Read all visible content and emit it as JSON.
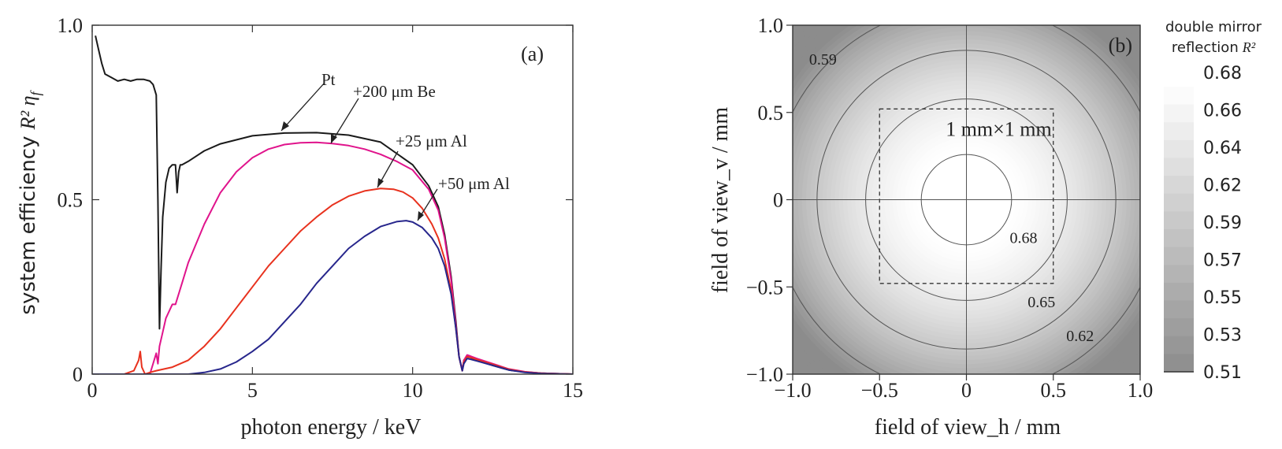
{
  "chart_data": [
    {
      "type": "line",
      "panel_label": "(a)",
      "xlabel": "photon energy / keV",
      "ylabel": "system efficiency",
      "ylabel_symbol": "R² η",
      "ylabel_subscript": "f",
      "xlim": [
        0,
        15
      ],
      "ylim": [
        0,
        1
      ],
      "xticks": [
        0,
        5,
        10,
        15
      ],
      "xtick_labels": [
        "0",
        "5",
        "10",
        "15"
      ],
      "yticks": [
        0,
        0.5,
        1.0
      ],
      "ytick_labels": [
        "0",
        "0.5",
        "1.0"
      ],
      "grid": false,
      "series": [
        {
          "name": "Pt",
          "color": "#1a1a1a",
          "x": [
            0.1,
            0.2,
            0.3,
            0.4,
            0.6,
            0.8,
            1.0,
            1.2,
            1.4,
            1.6,
            1.8,
            1.9,
            2.0,
            2.05,
            2.1,
            2.15,
            2.2,
            2.3,
            2.4,
            2.5,
            2.6,
            2.62,
            2.65,
            2.7,
            2.75,
            2.8,
            3.0,
            3.5,
            4.0,
            5.0,
            6.0,
            7.0,
            8.0,
            9.0,
            10.0,
            10.5,
            10.8,
            11.0,
            11.2,
            11.35,
            11.45,
            11.55,
            11.6,
            11.7,
            11.8,
            12.0,
            12.5,
            13.0,
            13.5,
            14.0,
            15.0
          ],
          "y": [
            0.97,
            0.93,
            0.89,
            0.86,
            0.85,
            0.84,
            0.845,
            0.84,
            0.845,
            0.845,
            0.84,
            0.83,
            0.8,
            0.5,
            0.13,
            0.3,
            0.45,
            0.55,
            0.59,
            0.6,
            0.6,
            0.57,
            0.52,
            0.58,
            0.6,
            0.6,
            0.61,
            0.64,
            0.66,
            0.683,
            0.691,
            0.692,
            0.685,
            0.665,
            0.6,
            0.54,
            0.48,
            0.4,
            0.28,
            0.15,
            0.05,
            0.01,
            0.04,
            0.05,
            0.048,
            0.04,
            0.025,
            0.012,
            0.006,
            0.003,
            0.0
          ]
        },
        {
          "name": "+200 μm Be",
          "color": "#e0148c",
          "x": [
            1.8,
            1.9,
            2.0,
            2.05,
            2.1,
            2.2,
            2.3,
            2.5,
            2.6,
            2.8,
            3.0,
            3.5,
            4.0,
            4.5,
            5.0,
            5.5,
            6.0,
            6.5,
            7.0,
            7.5,
            8.0,
            8.5,
            9.0,
            9.5,
            10.0,
            10.5,
            10.8,
            11.0,
            11.2,
            11.35,
            11.45,
            11.55,
            11.6,
            11.7,
            11.8,
            12.0,
            12.5,
            13.0,
            13.5,
            14.0,
            15.0
          ],
          "y": [
            0.0,
            0.03,
            0.06,
            0.03,
            0.08,
            0.12,
            0.16,
            0.2,
            0.2,
            0.26,
            0.32,
            0.43,
            0.52,
            0.58,
            0.62,
            0.645,
            0.658,
            0.663,
            0.664,
            0.661,
            0.655,
            0.645,
            0.63,
            0.61,
            0.585,
            0.53,
            0.47,
            0.39,
            0.27,
            0.14,
            0.05,
            0.01,
            0.04,
            0.055,
            0.052,
            0.045,
            0.03,
            0.015,
            0.007,
            0.003,
            0.0
          ]
        },
        {
          "name": "+25 μm Al",
          "color": "#e8321e",
          "x": [
            1.0,
            1.3,
            1.45,
            1.5,
            1.55,
            1.65,
            1.8,
            2.0,
            2.5,
            3.0,
            3.5,
            4.0,
            4.5,
            5.0,
            5.5,
            6.0,
            6.5,
            7.0,
            7.5,
            8.0,
            8.5,
            9.0,
            9.4,
            9.7,
            10.0,
            10.3,
            10.6,
            10.8,
            11.0,
            11.2,
            11.35,
            11.45,
            11.55,
            11.6,
            11.7,
            11.8,
            12.0,
            12.5,
            13.0,
            13.5,
            14.0,
            15.0
          ],
          "y": [
            0.0,
            0.01,
            0.04,
            0.065,
            0.02,
            0.0,
            0.005,
            0.01,
            0.02,
            0.04,
            0.08,
            0.13,
            0.19,
            0.25,
            0.31,
            0.36,
            0.41,
            0.45,
            0.485,
            0.51,
            0.525,
            0.532,
            0.53,
            0.522,
            0.505,
            0.475,
            0.43,
            0.39,
            0.33,
            0.24,
            0.13,
            0.05,
            0.01,
            0.035,
            0.05,
            0.048,
            0.042,
            0.028,
            0.014,
            0.006,
            0.003,
            0.0
          ]
        },
        {
          "name": "+50 μm Al",
          "color": "#27268c",
          "x": [
            3.0,
            3.5,
            4.0,
            4.5,
            5.0,
            5.5,
            6.0,
            6.5,
            7.0,
            7.5,
            8.0,
            8.5,
            9.0,
            9.5,
            9.8,
            10.0,
            10.3,
            10.6,
            10.8,
            11.0,
            11.2,
            11.35,
            11.45,
            11.55,
            11.6,
            11.7,
            11.8,
            12.0,
            12.5,
            13.0,
            13.5,
            14.0,
            15.0
          ],
          "y": [
            0.0,
            0.005,
            0.015,
            0.035,
            0.065,
            0.1,
            0.15,
            0.2,
            0.26,
            0.31,
            0.36,
            0.395,
            0.423,
            0.437,
            0.44,
            0.436,
            0.42,
            0.39,
            0.36,
            0.31,
            0.23,
            0.13,
            0.05,
            0.01,
            0.03,
            0.045,
            0.043,
            0.038,
            0.025,
            0.012,
            0.005,
            0.002,
            0.0
          ]
        }
      ]
    },
    {
      "type": "heatmap",
      "panel_label": "(b)",
      "xlabel": "field of view_h / mm",
      "ylabel": "field of view_v / mm",
      "xlim": [
        -1.0,
        1.0
      ],
      "ylim": [
        -1.0,
        1.0
      ],
      "xticks": [
        -1.0,
        -0.5,
        0,
        0.5,
        1.0
      ],
      "xtick_labels": [
        "−1.0",
        "−0.5",
        "0",
        "0.5",
        "1.0"
      ],
      "yticks": [
        -1.0,
        -0.5,
        0,
        0.5,
        1.0
      ],
      "ytick_labels": [
        "−1.0",
        "−0.5",
        "0",
        "0.5",
        "1.0"
      ],
      "grid": false,
      "center_value": 0.69,
      "max_radius": 1.42,
      "colorbar": {
        "title_line1": "double mirror",
        "title_line2": "reflection",
        "title_symbol": "R²",
        "labels": [
          "0.68",
          "0.66",
          "0.64",
          "0.62",
          "0.59",
          "0.57",
          "0.55",
          "0.53",
          "0.51"
        ],
        "min": 0.51,
        "max": 0.68,
        "levels": 16,
        "color_low": "#8c8c8c",
        "color_high": "#ffffff"
      },
      "contours": [
        {
          "label": "0.68",
          "radius": 0.26
        },
        {
          "label": "0.65",
          "radius": 0.58
        },
        {
          "label": "0.62",
          "radius": 0.86
        },
        {
          "label": "0.59",
          "radius": 1.12
        }
      ],
      "annotation_box": {
        "label": "1 mm×1 mm",
        "xmin": -0.5,
        "xmax": 0.5,
        "ymin": -0.48,
        "ymax": 0.52
      },
      "crosshair": {
        "x": 0,
        "y": 0
      }
    }
  ]
}
